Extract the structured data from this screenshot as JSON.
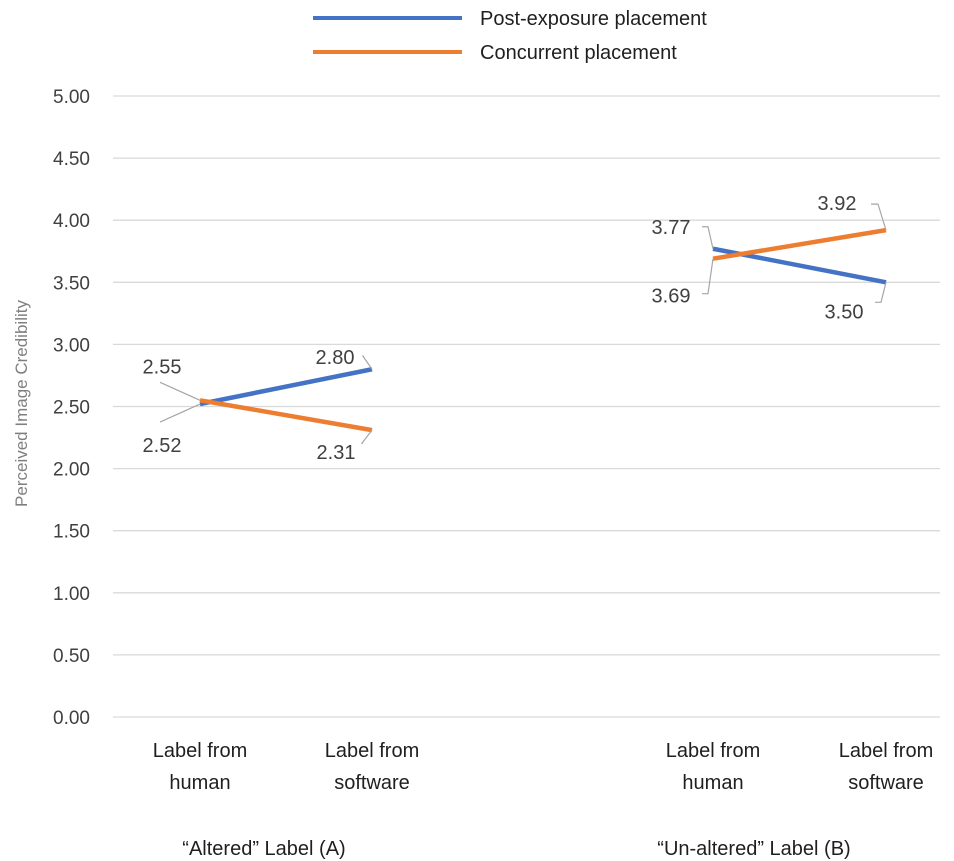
{
  "chart_data": {
    "type": "line",
    "ylabel": "Perceived Image Credibility",
    "ylim": [
      0,
      5
    ],
    "ytick_step": 0.5,
    "ytick_labels": [
      "0.00",
      "0.50",
      "1.00",
      "1.50",
      "2.00",
      "2.50",
      "3.00",
      "3.50",
      "4.00",
      "4.50",
      "5.00"
    ],
    "grid": true,
    "legend_position": "top",
    "groups": [
      {
        "label": "“Altered” Label (A)",
        "categories": [
          [
            "Label from",
            "human"
          ],
          [
            "Label from",
            "software"
          ]
        ],
        "series": [
          {
            "name": "Post-exposure placement",
            "color": "#4472c4",
            "values": [
              2.52,
              2.8
            ],
            "labels": [
              "2.52",
              "2.80"
            ]
          },
          {
            "name": "Concurrent placement",
            "color": "#ed7d31",
            "values": [
              2.55,
              2.31
            ],
            "labels": [
              "2.55",
              "2.31"
            ]
          }
        ]
      },
      {
        "label": "“Un-altered” Label (B)",
        "categories": [
          [
            "Label from",
            "human"
          ],
          [
            "Label from",
            "software"
          ]
        ],
        "series": [
          {
            "name": "Post-exposure placement",
            "color": "#4472c4",
            "values": [
              3.77,
              3.5
            ],
            "labels": [
              "3.77",
              "3.50"
            ]
          },
          {
            "name": "Concurrent placement",
            "color": "#ed7d31",
            "values": [
              3.69,
              3.92
            ],
            "labels": [
              "3.69",
              "3.92"
            ]
          }
        ]
      }
    ],
    "legend": [
      {
        "name": "Post-exposure placement",
        "color": "#4472c4"
      },
      {
        "name": "Concurrent placement",
        "color": "#ed7d31"
      }
    ]
  }
}
